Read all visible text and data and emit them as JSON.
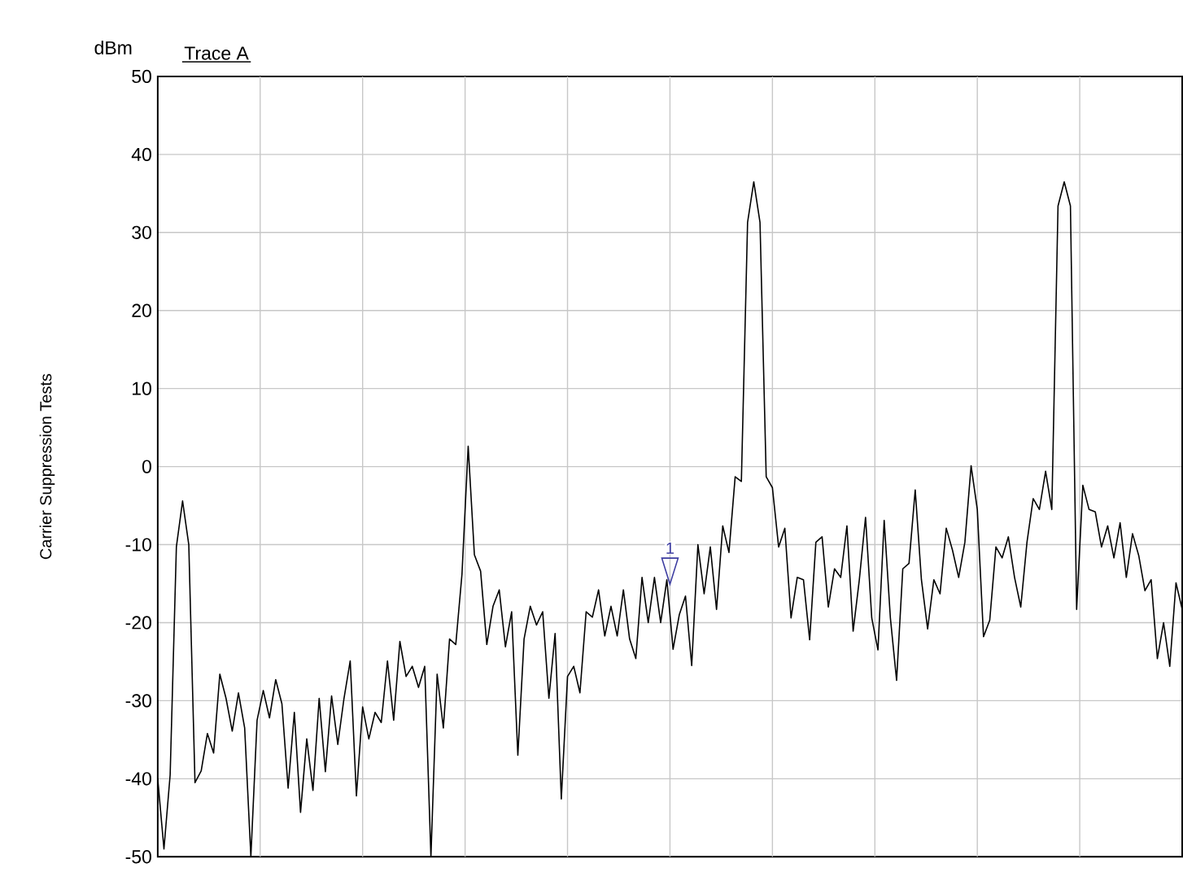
{
  "chart_data": {
    "type": "line",
    "ylabel": "Carrier Suppression Tests",
    "annotations": [
      "dBm",
      {
        "text": "1",
        "y": -13.4
      }
    ],
    "categories": [
      null,
      null,
      null,
      null,
      null,
      null,
      null,
      null,
      null,
      null,
      null,
      null,
      null,
      null,
      null,
      null,
      null,
      null,
      null,
      null,
      null,
      null,
      null,
      null,
      null,
      null,
      null,
      null,
      null,
      null,
      null,
      null,
      null,
      null,
      null,
      null,
      null,
      null,
      null,
      null,
      null,
      null,
      null,
      null,
      null,
      null,
      null,
      null,
      null,
      null,
      null,
      null,
      null,
      null,
      null,
      null,
      null,
      null,
      null,
      null,
      null,
      null,
      null,
      null,
      null,
      null,
      null,
      null,
      null,
      null,
      null,
      null,
      null,
      null,
      null,
      null,
      null,
      null,
      null,
      null,
      null,
      null,
      null,
      null,
      null,
      null,
      null,
      null,
      null,
      null,
      null,
      null,
      null,
      null,
      null,
      null,
      null,
      null,
      null,
      null,
      null,
      null,
      null,
      null,
      null,
      null,
      null,
      null,
      null,
      null,
      null,
      null,
      null,
      null,
      null,
      null,
      null,
      null,
      null,
      null,
      null,
      null,
      null,
      null,
      null,
      null,
      null,
      null,
      null,
      null,
      null,
      null,
      null,
      null,
      null,
      null,
      null,
      null,
      null,
      null,
      null,
      null,
      null,
      null,
      null,
      null,
      null,
      null,
      null,
      null,
      null,
      null,
      null,
      null,
      null,
      null,
      null,
      null,
      null,
      null,
      null,
      null,
      null,
      null,
      null,
      null
    ],
    "ylim": [
      -50,
      50
    ],
    "yticks": [
      -50,
      -40,
      -30,
      -20,
      -10,
      0,
      10,
      20,
      30,
      40,
      50
    ],
    "grid": true,
    "tick_labels": "y",
    "marker": "none",
    "line_style": "solid",
    "series": [
      {
        "name": "Trace A",
        "color": "#000000",
        "values": [
          -40,
          -49,
          -39.5,
          -10.3,
          -4.4,
          -10,
          -40.5,
          -39,
          -34.2,
          -36.7,
          -26.6,
          -29.7,
          -33.9,
          -29,
          -33.5,
          -50,
          -32.5,
          -28.7,
          -32.2,
          -27.3,
          -30.4,
          -41.2,
          -31.5,
          -44.3,
          -34.9,
          -41.5,
          -29.7,
          -39.1,
          -29.4,
          -35.6,
          -29.7,
          -24.9,
          -42.2,
          -30.8,
          -34.9,
          -31.5,
          -32.8,
          -24.9,
          -32.5,
          -22.4,
          -26.9,
          -25.6,
          -28.3,
          -25.6,
          -50,
          -26.6,
          -33.5,
          -22.1,
          -22.8,
          -13.8,
          2.6,
          -11.3,
          -13.4,
          -22.8,
          -17.9,
          -15.8,
          -23.1,
          -18.6,
          -37,
          -22.1,
          -17.9,
          -20.3,
          -18.6,
          -29.7,
          -21.4,
          -42.6,
          -26.9,
          -25.6,
          -29,
          -18.6,
          -19.3,
          -15.8,
          -21.7,
          -17.9,
          -21.7,
          -15.8,
          -22.1,
          -24.6,
          -14.2,
          -20,
          -14.2,
          -20,
          -14.5,
          -23.4,
          -19,
          -16.6,
          -25.5,
          -10,
          -16.3,
          -10.3,
          -18.3,
          -7.6,
          -11,
          -1.3,
          -1.9,
          31.3,
          36.5,
          31.3,
          -1.3,
          -2.7,
          -10.3,
          -7.9,
          -19.4,
          -14.2,
          -14.5,
          -22.2,
          -9.7,
          -9,
          -18,
          -13.1,
          -14.2,
          -7.6,
          -21.1,
          -14.5,
          -6.5,
          -19.4,
          -23.5,
          -6.9,
          -19.4,
          -27.4,
          -13.1,
          -12.4,
          -3,
          -14.5,
          -20.8,
          -14.5,
          -16.3,
          -7.9,
          -10.7,
          -14.2,
          -9.7,
          0.1,
          -5.5,
          -21.8,
          -19.7,
          -10.3,
          -11.7,
          -9,
          -14.2,
          -18,
          -9.7,
          -4.1,
          -5.5,
          -0.6,
          -5.5,
          33.4,
          36.5,
          33.4,
          -18.3,
          -2.4,
          -5.5,
          -5.8,
          -10.3,
          -7.6,
          -11.7,
          -7.2,
          -14.2,
          -8.6,
          -11.4,
          -15.9,
          -14.5,
          -24.6,
          -20,
          -25.6,
          -14.9,
          -18.3
        ]
      }
    ]
  }
}
